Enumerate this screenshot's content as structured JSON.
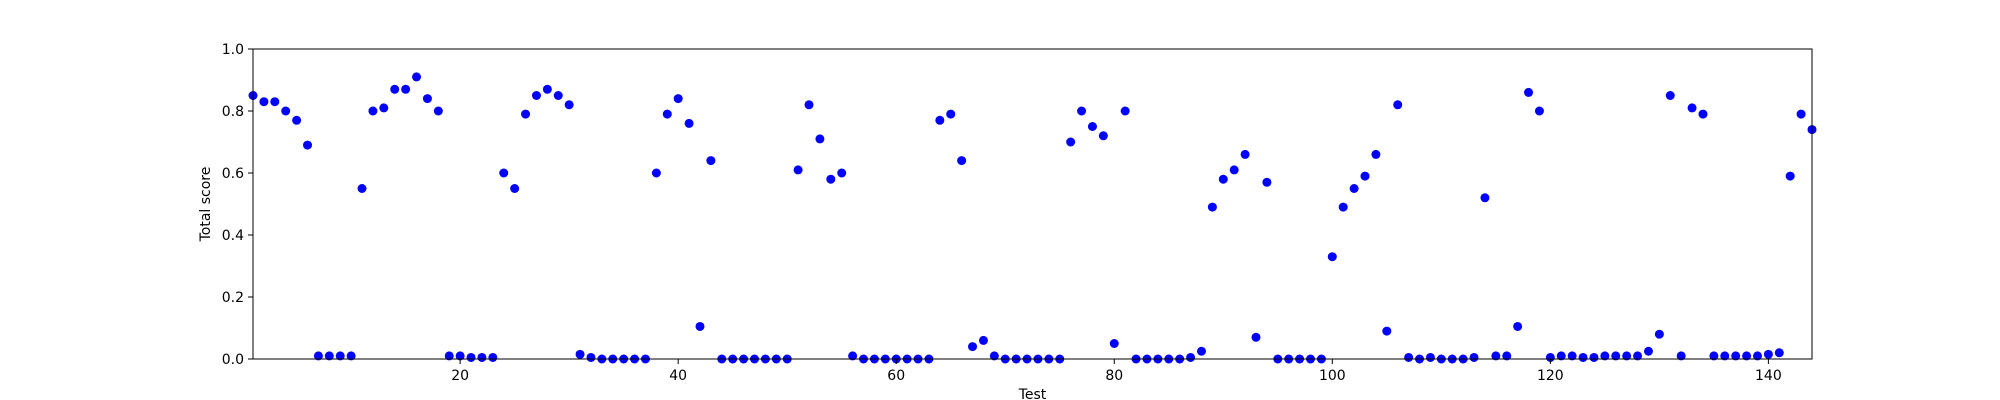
{
  "chart_data": {
    "type": "scatter",
    "title": "",
    "xlabel": "Test",
    "ylabel": "Total score",
    "xlim": [
      1,
      144
    ],
    "ylim": [
      0,
      1.0
    ],
    "xticks": [
      20,
      40,
      60,
      80,
      100,
      120,
      140
    ],
    "xtick_labels": [
      "20",
      "40",
      "60",
      "80",
      "100",
      "120",
      "140"
    ],
    "yticks": [
      0,
      0.2,
      0.4,
      0.6,
      0.8,
      1.0
    ],
    "ytick_labels": [
      "0.0",
      "0.2",
      "0.4",
      "0.6",
      "0.8",
      "1.0"
    ],
    "grid": false,
    "marker_color": "#0000ff",
    "x": [
      1,
      2,
      3,
      4,
      5,
      6,
      7,
      8,
      9,
      10,
      11,
      12,
      13,
      14,
      15,
      16,
      17,
      18,
      19,
      20,
      21,
      22,
      23,
      24,
      25,
      26,
      27,
      28,
      29,
      30,
      31,
      32,
      33,
      34,
      35,
      36,
      37,
      38,
      39,
      40,
      41,
      42,
      43,
      44,
      45,
      46,
      47,
      48,
      49,
      50,
      51,
      52,
      53,
      54,
      55,
      56,
      57,
      58,
      59,
      60,
      61,
      62,
      63,
      64,
      65,
      66,
      67,
      68,
      69,
      70,
      71,
      72,
      73,
      74,
      75,
      76,
      77,
      78,
      79,
      80,
      81,
      82,
      83,
      84,
      85,
      86,
      87,
      88,
      89,
      90,
      91,
      92,
      93,
      94,
      95,
      96,
      97,
      98,
      99,
      100,
      101,
      102,
      103,
      104,
      105,
      106,
      107,
      108,
      109,
      110,
      111,
      112,
      113,
      114,
      115,
      116,
      117,
      118,
      119,
      120,
      121,
      122,
      123,
      124,
      125,
      126,
      127,
      128,
      129,
      130,
      131,
      132,
      133,
      134,
      135,
      136,
      137,
      138,
      139,
      140,
      141,
      142,
      143,
      144
    ],
    "y": [
      0.85,
      0.83,
      0.83,
      0.8,
      0.77,
      0.69,
      0.01,
      0.01,
      0.01,
      0.01,
      0.55,
      0.8,
      0.81,
      0.87,
      0.87,
      0.91,
      0.84,
      0.8,
      0.01,
      0.01,
      0.005,
      0.005,
      0.005,
      0.6,
      0.55,
      0.79,
      0.85,
      0.87,
      0.85,
      0.82,
      0.015,
      0.005,
      0.0,
      0.0,
      0.0,
      0.0,
      0.0,
      0.6,
      0.79,
      0.84,
      0.76,
      0.105,
      0.64,
      0.0,
      0.0,
      0.0,
      0.0,
      0.0,
      0.0,
      0.0,
      0.61,
      0.82,
      0.71,
      0.58,
      0.6,
      0.01,
      0.0,
      0.0,
      0.0,
      0.0,
      0.0,
      0.0,
      0.0,
      0.77,
      0.79,
      0.64,
      0.04,
      0.06,
      0.01,
      0.0,
      0.0,
      0.0,
      0.0,
      0.0,
      0.0,
      0.7,
      0.8,
      0.75,
      0.72,
      0.05,
      0.8,
      0.0,
      0.0,
      0.0,
      0.0,
      0.0,
      0.005,
      0.025,
      0.49,
      0.58,
      0.61,
      0.66,
      0.07,
      0.57,
      0.0,
      0.0,
      0.0,
      0.0,
      0.0,
      0.33,
      0.49,
      0.55,
      0.59,
      0.66,
      0.09,
      0.82,
      0.005,
      0.0,
      0.005,
      0.0,
      0.0,
      0.0,
      0.005,
      0.52,
      0.01,
      0.01,
      0.105,
      0.86,
      0.8,
      0.005,
      0.01,
      0.01,
      0.005,
      0.005,
      0.01,
      0.01,
      0.01,
      0.01,
      0.025,
      0.08,
      0.85,
      0.01,
      0.81,
      0.79,
      0.01,
      0.01,
      0.01,
      0.01,
      0.01,
      0.015,
      0.02,
      0.59,
      0.79,
      0.74
    ]
  }
}
